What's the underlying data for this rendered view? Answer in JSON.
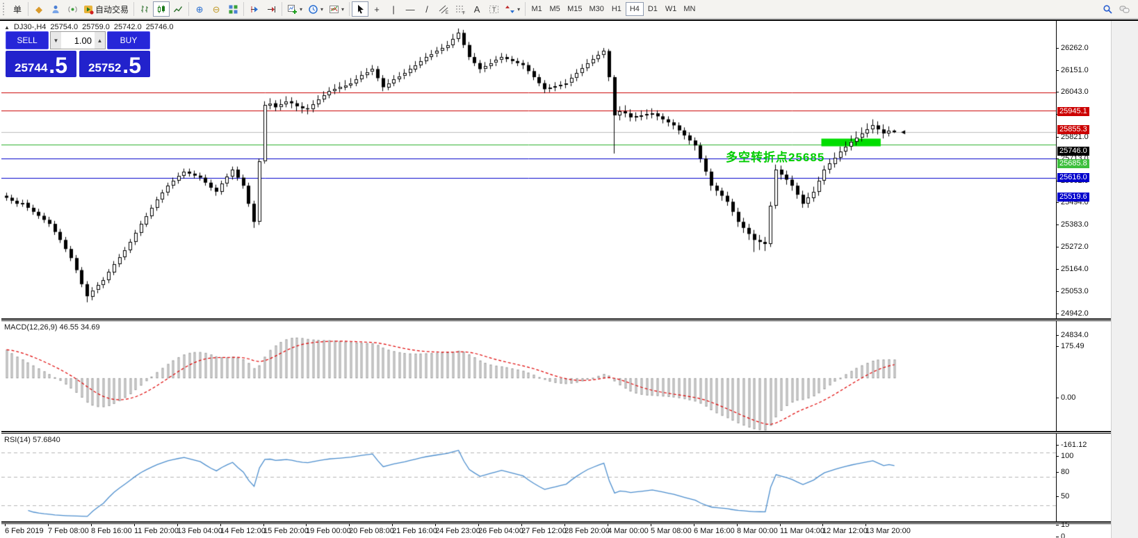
{
  "toolbar": {
    "groups": [
      {
        "items": [
          {
            "name": "new-order-button",
            "label": "单"
          }
        ]
      },
      {
        "items": [
          {
            "name": "history-center-icon",
            "glyph": "◆",
            "color": "#d99a2b"
          },
          {
            "name": "metaeditor-icon",
            "svg": "person"
          },
          {
            "name": "signals-icon",
            "svg": "signal"
          },
          {
            "name": "autotrading-button",
            "svg": "play",
            "label": "自动交易"
          }
        ]
      },
      {
        "items": [
          {
            "name": "bar-chart-icon",
            "svg": "bars"
          },
          {
            "name": "candlestick-chart-icon",
            "svg": "candles",
            "selected": true
          },
          {
            "name": "line-chart-icon",
            "svg": "linechart"
          }
        ]
      },
      {
        "items": [
          {
            "name": "zoom-in-icon",
            "glyph": "⊕",
            "color": "#2a6fd0"
          },
          {
            "name": "zoom-out-icon",
            "glyph": "⊖",
            "color": "#c09a2a"
          },
          {
            "name": "tile-windows-icon",
            "svg": "tile"
          }
        ]
      },
      {
        "items": [
          {
            "name": "chart-shift-icon",
            "svg": "shift"
          },
          {
            "name": "auto-scroll-icon",
            "svg": "shiftend"
          }
        ]
      },
      {
        "items": [
          {
            "name": "new-chart-button",
            "svg": "newchart",
            "dropdown": true
          },
          {
            "name": "profiles-button",
            "svg": "clock",
            "dropdown": true
          },
          {
            "name": "indicators-button",
            "svg": "indic",
            "dropdown": true
          }
        ]
      },
      {
        "items": [
          {
            "name": "cursor-tool",
            "svg": "cursor",
            "selected": true
          },
          {
            "name": "crosshair-tool",
            "glyph": "+"
          },
          {
            "name": "vline-tool",
            "glyph": "|"
          },
          {
            "name": "hline-tool",
            "glyph": "—"
          },
          {
            "name": "trendline-tool",
            "glyph": "/"
          },
          {
            "name": "channel-tool",
            "svg": "channel"
          },
          {
            "name": "fibo-tool",
            "svg": "fibo"
          },
          {
            "name": "text-tool",
            "glyph": "A"
          },
          {
            "name": "label-tool",
            "svg": "label"
          },
          {
            "name": "arrows-tool",
            "svg": "arrows",
            "dropdown": true
          }
        ]
      }
    ],
    "right_items": [
      {
        "name": "search-icon",
        "svg": "search"
      },
      {
        "name": "chat-icon",
        "svg": "chat"
      }
    ]
  },
  "timeframes": {
    "options": [
      "M1",
      "M5",
      "M15",
      "M30",
      "H1",
      "H4",
      "D1",
      "W1",
      "MN"
    ],
    "selected": "H4"
  },
  "chart": {
    "collapse_arrow": "▲",
    "symbol_period": "DJ30-,H4",
    "open": "25754.0",
    "high": "25759.0",
    "low": "25742.0",
    "close": "25746.0"
  },
  "trade_panel": {
    "sell_label": "SELL",
    "buy_label": "BUY",
    "volume": "1.00",
    "bid_main": "25744",
    "bid_frac": ".5",
    "ask_main": "25752",
    "ask_frac": ".5",
    "panel_color": "#2222cc"
  },
  "annotation": {
    "text": "多空转折点25685",
    "color": "#00cc00"
  },
  "price_axis": {
    "ticks": [
      "26262.0",
      "26151.0",
      "26043.0",
      "25932.0",
      "25821.0",
      "25713.0",
      "25602.0",
      "25494.0",
      "25383.0",
      "25272.0",
      "25164.0",
      "25053.0",
      "24942.0",
      "24834.0"
    ],
    "badges": [
      {
        "text": "25945.1",
        "price": 25945.1,
        "color": "#cc0000"
      },
      {
        "text": "25855.3",
        "price": 25855.3,
        "color": "#cc0000"
      },
      {
        "text": "25746.0",
        "price": 25746.0,
        "color": "#000000"
      },
      {
        "text": "25685.8",
        "price": 25685.8,
        "color": "#3dbf3d"
      },
      {
        "text": "25616.0",
        "price": 25616.0,
        "color": "#0000cc"
      },
      {
        "text": "25519.6",
        "price": 25519.6,
        "color": "#0000cc"
      }
    ]
  },
  "macd_panel": {
    "label": "MACD(12,26,9) 46.55 34.69",
    "axis": {
      "max": "175.49",
      "zero": "0.00",
      "min": "-161.12"
    },
    "signal_color": "#e00000",
    "hist_fill": "#ededed",
    "hist_stroke": "#9a9a9a"
  },
  "rsi_panel": {
    "label": "RSI(14) 57.6840",
    "axis": [
      "100",
      "80",
      "50",
      "15",
      "0"
    ],
    "levels": [
      80,
      50,
      15
    ],
    "line_color": "#4c8ece"
  },
  "chart_data": {
    "type": "candlestick",
    "symbol": "DJ30-",
    "period": "H4",
    "price_range": [
      24820,
      26300
    ],
    "hlines": [
      {
        "price": 25945.1,
        "color": "#cc0000"
      },
      {
        "price": 25855.3,
        "color": "#cc0000"
      },
      {
        "price": 25746.0,
        "color": "#bdbdbd",
        "role": "last-price"
      },
      {
        "price": 25685.8,
        "color": "#2eaf2e"
      },
      {
        "price": 25616.0,
        "color": "#0000cc"
      },
      {
        "price": 25519.6,
        "color": "#0000cc"
      }
    ],
    "highlight_rect": {
      "from_index": 152,
      "to_index": 162,
      "price_top": 25714,
      "price_bottom": 25676,
      "color": "#00dd00"
    },
    "x_labels": [
      "6 Feb 2019",
      "7 Feb 08:00",
      "8 Feb 16:00",
      "11 Feb 20:00",
      "13 Feb 04:00",
      "14 Feb 12:00",
      "15 Feb 20:00",
      "19 Feb 00:00",
      "20 Feb 08:00",
      "21 Feb 16:00",
      "24 Feb 23:00",
      "26 Feb 04:00",
      "27 Feb 12:00",
      "28 Feb 20:00",
      "4 Mar 00:00",
      "5 Mar 08:00",
      "6 Mar 16:00",
      "8 Mar 00:00",
      "11 Mar 04:00",
      "12 Mar 12:00",
      "13 Mar 20:00"
    ],
    "bars_per_label": 8,
    "candles": [
      [
        25430,
        25445,
        25405,
        25420
      ],
      [
        25420,
        25435,
        25390,
        25405
      ],
      [
        25405,
        25420,
        25375,
        25390
      ],
      [
        25390,
        25410,
        25375,
        25395
      ],
      [
        25395,
        25410,
        25355,
        25370
      ],
      [
        25370,
        25385,
        25335,
        25350
      ],
      [
        25350,
        25365,
        25315,
        25330
      ],
      [
        25330,
        25345,
        25295,
        25310
      ],
      [
        25310,
        25325,
        25275,
        25290
      ],
      [
        25290,
        25305,
        25235,
        25250
      ],
      [
        25250,
        25265,
        25195,
        25210
      ],
      [
        25210,
        25225,
        25150,
        25165
      ],
      [
        25165,
        25180,
        25105,
        25120
      ],
      [
        25120,
        25135,
        25045,
        25060
      ],
      [
        25060,
        25075,
        24975,
        24990
      ],
      [
        24990,
        25005,
        24900,
        24930
      ],
      [
        24930,
        24975,
        24910,
        24960
      ],
      [
        24960,
        25000,
        24945,
        24985
      ],
      [
        24985,
        25025,
        24970,
        25010
      ],
      [
        25010,
        25065,
        24995,
        25050
      ],
      [
        25050,
        25105,
        25035,
        25090
      ],
      [
        25090,
        25140,
        25075,
        25125
      ],
      [
        25125,
        25175,
        25110,
        25160
      ],
      [
        25160,
        25215,
        25145,
        25200
      ],
      [
        25200,
        25260,
        25185,
        25245
      ],
      [
        25245,
        25305,
        25230,
        25290
      ],
      [
        25290,
        25345,
        25275,
        25330
      ],
      [
        25330,
        25385,
        25315,
        25370
      ],
      [
        25370,
        25425,
        25355,
        25410
      ],
      [
        25410,
        25460,
        25395,
        25445
      ],
      [
        25445,
        25495,
        25430,
        25480
      ],
      [
        25480,
        25520,
        25465,
        25505
      ],
      [
        25505,
        25545,
        25490,
        25530
      ],
      [
        25530,
        25565,
        25515,
        25550
      ],
      [
        25550,
        25565,
        25525,
        25540
      ],
      [
        25540,
        25555,
        25515,
        25530
      ],
      [
        25530,
        25545,
        25505,
        25520
      ],
      [
        25520,
        25535,
        25480,
        25495
      ],
      [
        25495,
        25510,
        25455,
        25470
      ],
      [
        25470,
        25485,
        25430,
        25450
      ],
      [
        25450,
        25505,
        25435,
        25490
      ],
      [
        25490,
        25540,
        25475,
        25525
      ],
      [
        25525,
        25575,
        25510,
        25560
      ],
      [
        25560,
        25575,
        25505,
        25520
      ],
      [
        25520,
        25535,
        25465,
        25480
      ],
      [
        25480,
        25495,
        25375,
        25390
      ],
      [
        25390,
        25405,
        25270,
        25300
      ],
      [
        25300,
        25615,
        25285,
        25600
      ],
      [
        25600,
        25900,
        25590,
        25880
      ],
      [
        25880,
        25915,
        25860,
        25890
      ],
      [
        25890,
        25905,
        25850,
        25870
      ],
      [
        25870,
        25910,
        25855,
        25885
      ],
      [
        25885,
        25925,
        25870,
        25900
      ],
      [
        25900,
        25920,
        25865,
        25890
      ],
      [
        25890,
        25905,
        25850,
        25875
      ],
      [
        25875,
        25895,
        25840,
        25865
      ],
      [
        25865,
        25885,
        25835,
        25860
      ],
      [
        25860,
        25905,
        25845,
        25885
      ],
      [
        25885,
        25930,
        25870,
        25910
      ],
      [
        25910,
        25950,
        25895,
        25930
      ],
      [
        25930,
        25970,
        25915,
        25950
      ],
      [
        25950,
        25985,
        25935,
        25960
      ],
      [
        25960,
        25995,
        25945,
        25970
      ],
      [
        25970,
        26005,
        25955,
        25980
      ],
      [
        25980,
        26015,
        25965,
        25990
      ],
      [
        25990,
        26030,
        25975,
        26010
      ],
      [
        26010,
        26050,
        25995,
        26030
      ],
      [
        26030,
        26065,
        26015,
        26045
      ],
      [
        26045,
        26080,
        26030,
        26060
      ],
      [
        26060,
        26075,
        26000,
        26015
      ],
      [
        26015,
        26030,
        25950,
        25970
      ],
      [
        25970,
        26010,
        25955,
        25990
      ],
      [
        25990,
        26030,
        25975,
        26010
      ],
      [
        26010,
        26045,
        25995,
        26025
      ],
      [
        26025,
        26060,
        26010,
        26040
      ],
      [
        26040,
        26080,
        26025,
        26060
      ],
      [
        26060,
        26100,
        26045,
        26080
      ],
      [
        26080,
        26120,
        26065,
        26100
      ],
      [
        26100,
        26140,
        26085,
        26120
      ],
      [
        26120,
        26155,
        26105,
        26135
      ],
      [
        26135,
        26170,
        26120,
        26150
      ],
      [
        26150,
        26185,
        26135,
        26165
      ],
      [
        26165,
        26200,
        26150,
        26180
      ],
      [
        26180,
        26235,
        26165,
        26210
      ],
      [
        26210,
        26262,
        26195,
        26240
      ],
      [
        26240,
        26255,
        26165,
        26180
      ],
      [
        26180,
        26195,
        26105,
        26120
      ],
      [
        26120,
        26140,
        26075,
        26090
      ],
      [
        26090,
        26105,
        26040,
        26060
      ],
      [
        26060,
        26095,
        26045,
        26075
      ],
      [
        26075,
        26110,
        26060,
        26090
      ],
      [
        26090,
        26125,
        26075,
        26105
      ],
      [
        26105,
        26140,
        26090,
        26120
      ],
      [
        26120,
        26135,
        26095,
        26110
      ],
      [
        26110,
        26125,
        26085,
        26100
      ],
      [
        26100,
        26115,
        26075,
        26090
      ],
      [
        26090,
        26105,
        26060,
        26080
      ],
      [
        26080,
        26095,
        26035,
        26050
      ],
      [
        26050,
        26065,
        26005,
        26020
      ],
      [
        26020,
        26035,
        25975,
        25990
      ],
      [
        25990,
        26005,
        25940,
        25960
      ],
      [
        25960,
        25985,
        25945,
        25968
      ],
      [
        25968,
        25995,
        25950,
        25975
      ],
      [
        25975,
        26000,
        25960,
        25983
      ],
      [
        25983,
        26010,
        25965,
        25990
      ],
      [
        25990,
        26035,
        25975,
        26015
      ],
      [
        26015,
        26060,
        26000,
        26040
      ],
      [
        26040,
        26085,
        26025,
        26065
      ],
      [
        26065,
        26110,
        26050,
        26090
      ],
      [
        26090,
        26130,
        26075,
        26110
      ],
      [
        26110,
        26150,
        26095,
        26130
      ],
      [
        26130,
        26165,
        26115,
        26150
      ],
      [
        26150,
        26160,
        26000,
        26020
      ],
      [
        26020,
        26030,
        25640,
        25830
      ],
      [
        25830,
        25875,
        25805,
        25850
      ],
      [
        25850,
        25880,
        25820,
        25840
      ],
      [
        25840,
        25860,
        25800,
        25820
      ],
      [
        25820,
        25845,
        25800,
        25825
      ],
      [
        25825,
        25855,
        25805,
        25830
      ],
      [
        25830,
        25860,
        25810,
        25835
      ],
      [
        25835,
        25865,
        25815,
        25840
      ],
      [
        25840,
        25855,
        25805,
        25825
      ],
      [
        25825,
        25840,
        25790,
        25810
      ],
      [
        25810,
        25825,
        25775,
        25795
      ],
      [
        25795,
        25810,
        25760,
        25780
      ],
      [
        25780,
        25795,
        25735,
        25755
      ],
      [
        25755,
        25770,
        25710,
        25730
      ],
      [
        25730,
        25745,
        25685,
        25705
      ],
      [
        25705,
        25720,
        25655,
        25680
      ],
      [
        25680,
        25695,
        25595,
        25615
      ],
      [
        25615,
        25630,
        25530,
        25550
      ],
      [
        25550,
        25565,
        25455,
        25480
      ],
      [
        25480,
        25495,
        25430,
        25455
      ],
      [
        25455,
        25470,
        25405,
        25430
      ],
      [
        25430,
        25450,
        25380,
        25400
      ],
      [
        25400,
        25415,
        25330,
        25350
      ],
      [
        25350,
        25370,
        25275,
        25300
      ],
      [
        25300,
        25320,
        25245,
        25270
      ],
      [
        25270,
        25290,
        25210,
        25240
      ],
      [
        25240,
        25260,
        25150,
        25210
      ],
      [
        25210,
        25235,
        25160,
        25200
      ],
      [
        25200,
        25225,
        25155,
        25190
      ],
      [
        25190,
        25400,
        25175,
        25380
      ],
      [
        25380,
        25585,
        25365,
        25560
      ],
      [
        25560,
        25580,
        25510,
        25535
      ],
      [
        25535,
        25555,
        25485,
        25510
      ],
      [
        25510,
        25530,
        25455,
        25480
      ],
      [
        25480,
        25495,
        25415,
        25435
      ],
      [
        25435,
        25455,
        25370,
        25390
      ],
      [
        25390,
        25445,
        25370,
        25420
      ],
      [
        25420,
        25475,
        25400,
        25450
      ],
      [
        25450,
        25525,
        25430,
        25505
      ],
      [
        25505,
        25580,
        25485,
        25560
      ],
      [
        25560,
        25615,
        25540,
        25590
      ],
      [
        25590,
        25645,
        25570,
        25620
      ],
      [
        25620,
        25675,
        25600,
        25650
      ],
      [
        25650,
        25700,
        25630,
        25675
      ],
      [
        25675,
        25730,
        25655,
        25700
      ],
      [
        25700,
        25750,
        25680,
        25720
      ],
      [
        25720,
        25770,
        25700,
        25740
      ],
      [
        25740,
        25790,
        25720,
        25760
      ],
      [
        25760,
        25810,
        25740,
        25780
      ],
      [
        25780,
        25800,
        25735,
        25760
      ],
      [
        25760,
        25785,
        25715,
        25740
      ],
      [
        25740,
        25775,
        25725,
        25754
      ],
      [
        25754,
        25759,
        25742,
        25746
      ]
    ],
    "macd": {
      "params": [
        12,
        26,
        9
      ],
      "value_main": 46.55,
      "value_signal": 34.69,
      "axis_max": 175.49,
      "axis_min": -161.12
    },
    "rsi": {
      "period": 14,
      "value": 57.684,
      "levels": [
        80,
        50,
        15
      ]
    }
  }
}
